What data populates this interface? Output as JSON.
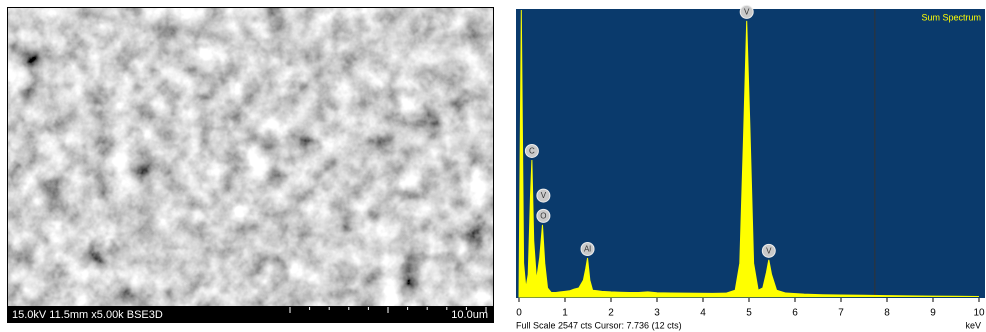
{
  "sem": {
    "info": "15.0kV 11.5mm x5.00k BSE3D",
    "scale_label": "10.0um"
  },
  "chart_data": {
    "type": "area",
    "title": "Sum Spectrum",
    "x_label": "keV",
    "footer": "Full Scale 2547 cts Cursor: 7.736  (12 cts)",
    "color": "#ffff00",
    "background": "#0a3a6c",
    "xlim": [
      0,
      10
    ],
    "ylim": [
      0,
      2547
    ],
    "xticks": [
      0,
      1,
      2,
      3,
      4,
      5,
      6,
      7,
      8,
      9,
      10
    ],
    "cursor_x": 7.736,
    "x": [
      0,
      0.05,
      0.1,
      0.15,
      0.2,
      0.25,
      0.28,
      0.32,
      0.38,
      0.45,
      0.51,
      0.56,
      0.62,
      0.7,
      0.8,
      0.9,
      1.0,
      1.1,
      1.2,
      1.3,
      1.4,
      1.45,
      1.49,
      1.54,
      1.6,
      1.7,
      1.8,
      2.0,
      2.2,
      2.4,
      2.6,
      2.8,
      3.0,
      3.3,
      3.6,
      3.9,
      4.2,
      4.5,
      4.7,
      4.8,
      4.88,
      4.95,
      5.02,
      5.1,
      5.2,
      5.3,
      5.38,
      5.43,
      5.49,
      5.6,
      5.8,
      6.2,
      6.6,
      7.0,
      7.5,
      8.0,
      8.5,
      9.0,
      9.5,
      10.0
    ],
    "values": [
      0,
      2547,
      300,
      80,
      200,
      900,
      1216,
      500,
      150,
      350,
      640,
      300,
      80,
      40,
      40,
      45,
      50,
      55,
      70,
      80,
      150,
      250,
      346,
      150,
      60,
      55,
      50,
      45,
      42,
      40,
      40,
      45,
      38,
      36,
      34,
      33,
      32,
      34,
      60,
      300,
      1400,
      2450,
      1500,
      300,
      60,
      80,
      220,
      330,
      200,
      60,
      35,
      25,
      20,
      18,
      15,
      12,
      10,
      8,
      7,
      5
    ],
    "peaks": [
      {
        "label": "C",
        "x": 0.28,
        "value": 1216
      },
      {
        "label": "V",
        "x": 0.53,
        "value": 820
      },
      {
        "label": "O",
        "x": 0.53,
        "value": 640
      },
      {
        "label": "Al",
        "x": 1.49,
        "value": 346
      },
      {
        "label": "V",
        "x": 4.95,
        "value": 2450
      },
      {
        "label": "V",
        "x": 5.43,
        "value": 330
      }
    ]
  }
}
